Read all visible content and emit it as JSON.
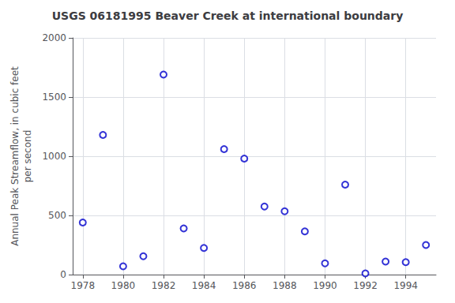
{
  "chart_data": {
    "type": "scatter",
    "title": "USGS 06181995 Beaver Creek at international boundary",
    "ylabel": "Annual Peak Streamflow, in cubic feet\nper second",
    "x": [
      1978,
      1979,
      1980,
      1981,
      1982,
      1983,
      1984,
      1985,
      1986,
      1987,
      1988,
      1989,
      1990,
      1991,
      1992,
      1993,
      1994,
      1995
    ],
    "values": [
      440,
      1180,
      70,
      155,
      1690,
      390,
      225,
      1060,
      980,
      575,
      535,
      365,
      95,
      760,
      10,
      110,
      105,
      250
    ],
    "xlim": [
      1977.5,
      1995.5
    ],
    "ylim": [
      0,
      2000
    ],
    "xticks": [
      1978,
      1980,
      1982,
      1984,
      1986,
      1988,
      1990,
      1992,
      1994
    ],
    "yticks": [
      0,
      500,
      1000,
      1500,
      2000
    ],
    "color": "#0000cc",
    "marker": "circle",
    "grid": true
  }
}
